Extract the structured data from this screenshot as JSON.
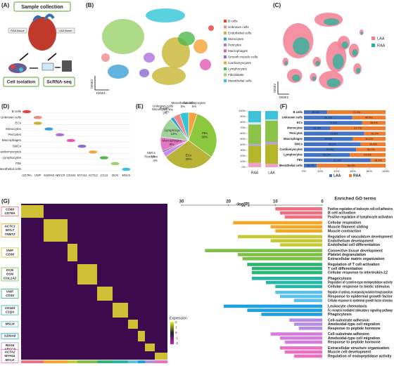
{
  "panel_labels": [
    "(A)",
    "(B)",
    "(C)",
    "(D)",
    "(E)",
    "(F)",
    "(G)"
  ],
  "panel_a": {
    "title": "Sample collection",
    "raa": "RAA tissue",
    "laa": "LAA tissue",
    "step2": "Cell isolation",
    "step3": "ScRNA-seq"
  },
  "panel_b": {
    "x_label": "tSNE1",
    "y_label": "tSNE2",
    "legend": [
      {
        "name": "B cells",
        "color": "#e8403a"
      },
      {
        "name": "Unknown cells",
        "color": "#f08a8a"
      },
      {
        "name": "Endothelial cells",
        "color": "#c8b432"
      },
      {
        "name": "Monocytes",
        "color": "#3a9fd6"
      },
      {
        "name": "Pericytes",
        "color": "#b06ee0"
      },
      {
        "name": "Macrophages",
        "color": "#e05ab4"
      },
      {
        "name": "Smooth muscle cells",
        "color": "#8a6ad0"
      },
      {
        "name": "Cardiomyocytes",
        "color": "#f5a33a"
      },
      {
        "name": "Lymphocytes",
        "color": "#4fb848"
      },
      {
        "name": "Fibroblasts",
        "color": "#9ad26a"
      },
      {
        "name": "Mesothelial cells",
        "color": "#30c6d6"
      }
    ]
  },
  "panel_c": {
    "x_label": "tSNE1",
    "y_label": "tSNE2",
    "legend": [
      {
        "name": "LAA",
        "color": "#f27f93"
      },
      {
        "name": "RAA",
        "color": "#20b39b"
      }
    ]
  },
  "panel_d": {
    "rows": [
      "B cells",
      "Unknown cells",
      "ECs",
      "Monocytes",
      "Pericytes",
      "Macrophages",
      "SMCs",
      "Cardiomyocytes",
      "Lymphocytes",
      "FBs",
      "Mesothelial cells"
    ],
    "genes": [
      "CD79A",
      "VWF",
      "S100A8",
      "ABCC9",
      "CD163",
      "MYH11",
      "ACTC1",
      "CCL5",
      "DCN",
      "MSLN"
    ]
  },
  "panel_g": {
    "gene_groups": [
      [
        "CD69",
        "CD79A"
      ],
      [
        "ACTC1",
        "MYL7",
        "TNNT2"
      ],
      [
        "VWF",
        "CD36"
      ],
      [
        "DCN",
        "GSN",
        "COL1A2"
      ],
      [
        "VWF",
        "CD34"
      ],
      [
        "CD163",
        "C1QA"
      ],
      [
        "MSLN"
      ],
      [
        "S100A8"
      ],
      [
        "RGS5",
        "ABCC9"
      ],
      [
        "ACTA2",
        "MYH11",
        "MYLK"
      ]
    ],
    "group_colors": [
      "#f26d7d",
      "#f5a623",
      "#c8c832",
      "#7cc242",
      "#2bb673",
      "#26b5a6",
      "#5bc0eb",
      "#1fa0e0",
      "#b48ce6",
      "#ec6fc0"
    ],
    "expression_title": "Expression",
    "expression_ticks": [
      2,
      1,
      0,
      -1,
      -2
    ]
  },
  "chart_data": [
    {
      "type": "pie",
      "categories": [
        "Cardiomyocytes",
        "FBs",
        "ECs",
        "Pericytes",
        "SMCs",
        "Macrophages",
        "Lymphocytes",
        "Monocytes",
        "B-cells",
        "Unknown cells",
        "Mesothelial cells"
      ],
      "values": [
        5,
        30,
        30,
        3,
        1,
        8,
        12,
        2,
        0,
        4,
        5
      ],
      "value_labels": [
        "5%",
        "30%",
        "30%",
        "3%",
        "1%",
        "8%",
        "12%",
        "2%",
        "0%",
        "4%",
        "5%"
      ],
      "colors": [
        "#f5a33a",
        "#8dc63f",
        "#b8b236",
        "#c98be8",
        "#7b5ea7",
        "#e377c2",
        "#9fd29a",
        "#3a9fd6",
        "#e8403a",
        "#f08a8a",
        "#30c6d6"
      ]
    },
    {
      "type": "stacked-bar",
      "categories": [
        "RAA",
        "LAA"
      ],
      "series": [
        {
          "color": "#f0a0c8",
          "values": [
            8,
            6
          ]
        },
        {
          "color": "#b5b52a",
          "values": [
            30,
            35
          ]
        },
        {
          "color": "#b8a0e0",
          "values": [
            3,
            4
          ]
        },
        {
          "color": "#8bc34a",
          "values": [
            35,
            38
          ]
        },
        {
          "color": "#cfe9f5",
          "values": [
            4,
            2
          ]
        },
        {
          "color": "#3fc1d9",
          "values": [
            20,
            15
          ]
        }
      ],
      "ylim": [
        0,
        100
      ],
      "yticks": [
        {
          "value": 0,
          "label": "0%"
        },
        {
          "value": 10,
          "label": "10%"
        },
        {
          "value": 20,
          "label": "20%"
        },
        {
          "value": 30,
          "label": "30%"
        },
        {
          "value": 40,
          "label": "40%"
        },
        {
          "value": 50,
          "label": "50%"
        },
        {
          "value": 60,
          "label": "60%"
        },
        {
          "value": 70,
          "label": "70%"
        },
        {
          "value": 80,
          "label": "80%"
        },
        {
          "value": 90,
          "label": "90%"
        },
        {
          "value": 100,
          "label": "100%"
        }
      ]
    },
    {
      "type": "hbar-stacked",
      "categories": [
        "B cells",
        "Unknown cells",
        "ECs",
        "Monocytes",
        "Pericytes",
        "Macrophages",
        "SMCs",
        "Cardiomyocytes",
        "Lymphocytes",
        "FBs",
        "Mesothelial cells"
      ],
      "series": [
        {
          "name": "LAA",
          "color": "#4472c4",
          "values": [
            28.6,
            59.1,
            71.4,
            32.3,
            73.8,
            59.9,
            69.6,
            63.8,
            56.1,
            81.8,
            15.7
          ],
          "value_labels": [
            "28.6%",
            "59.1%",
            "71.4%",
            "32.3%",
            "73.8%",
            "59.9%",
            "69.6%",
            "63.8%",
            "56.1%",
            "81.8%",
            "15.7%"
          ]
        },
        {
          "name": "RAA",
          "color": "#ed7d31",
          "values": [
            71.4,
            40.9,
            28.6,
            67.7,
            26.2,
            40.1,
            30.4,
            36.2,
            43.9,
            18.2,
            84.3
          ],
          "value_labels": [
            "71.4%",
            "40.9%",
            "28.6%",
            "67.7%",
            "26.2%",
            "40.1%",
            "30.4%",
            "36.2%",
            "43.9%",
            "18.2%",
            "84.3%"
          ]
        }
      ],
      "xlim": [
        0,
        100
      ],
      "xticks": [
        {
          "value": 0,
          "label": "0%"
        },
        {
          "value": 20,
          "label": "20%"
        },
        {
          "value": 40,
          "label": "40%"
        },
        {
          "value": 60,
          "label": "60%"
        },
        {
          "value": 80,
          "label": "80%"
        },
        {
          "value": 100,
          "label": "100%"
        }
      ]
    },
    {
      "type": "hbar",
      "title": "Enriched GO terms",
      "x_label": "-log[P]",
      "categories": [
        "Positive regulation of leukocyte cell-cell adhesion",
        "B cell activation",
        "Positive regulation of lymphocyte activation",
        "Cellular respiration",
        "Muscle filament sliding",
        "Muscle contraction",
        "Regulation of vasculature development",
        "Endothelium development",
        "Endothelial cell differentiation",
        "Connective tissue development",
        "Platelet degranulation",
        "Extracellular matrix organization",
        "Regulation of T cell activation",
        "T cell differentiation",
        "Cellular response to interleukin-12",
        "Phagocytosis",
        "Regulation of cysteine-type endopeptidase activity",
        "Cellular response to biotic stimulus",
        "Regulation of symbiosis, encompassing mutualism through parasitism",
        "Response to epidermal growth factor",
        "Cellular response to epidermal growth factor stimulus",
        "Leukocyte chemotaxis",
        "Fc receptor mediated stimulatory signaling pathway",
        "Phagocytosis",
        "Cell-substrate adhesion",
        "Ameboidal-type cell migration",
        "Response to peptide hormone",
        "Cell-substrate adhesion",
        "Ameboidal-type cell migration",
        "Response to peptide hormone",
        "Extracellular structure organization",
        "Muscle cell development",
        "Regulation of endopeptidase activity"
      ],
      "values": [
        10,
        9,
        8,
        19,
        11,
        10,
        18,
        11,
        9,
        25,
        18,
        17,
        16,
        15,
        15,
        15,
        12,
        10,
        10,
        9,
        6,
        21,
        16,
        13,
        7,
        6,
        5,
        11,
        9,
        8,
        9,
        8,
        6
      ],
      "colors": [
        "#f26d7d",
        "#f26d7d",
        "#f26d7d",
        "#f5a623",
        "#f5a623",
        "#f5a623",
        "#c8c832",
        "#c8c832",
        "#c8c832",
        "#7cc242",
        "#7cc242",
        "#7cc242",
        "#2bb673",
        "#2bb673",
        "#2bb673",
        "#26b5a6",
        "#26b5a6",
        "#26b5a6",
        "#5bc0eb",
        "#5bc0eb",
        "#5bc0eb",
        "#1fa0e0",
        "#1fa0e0",
        "#1fa0e0",
        "#b48ce6",
        "#b48ce6",
        "#b48ce6",
        "#d77be0",
        "#d77be0",
        "#d77be0",
        "#ec6fc0",
        "#ec6fc0",
        "#ec6fc0"
      ],
      "xlim": [
        30,
        0
      ],
      "xticks": [
        30,
        20,
        10,
        0
      ]
    }
  ]
}
